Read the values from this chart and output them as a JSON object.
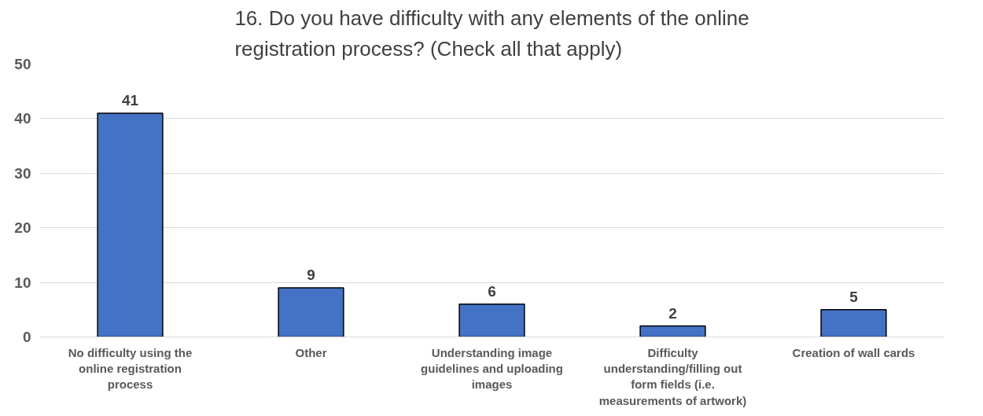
{
  "chart_data": {
    "type": "bar",
    "title": "16. Do you have difficulty with any elements of the online registration process? (Check all that apply)",
    "categories": [
      "No difficulty using the online registration process",
      "Other",
      "Understanding image guidelines and uploading images",
      "Difficulty understanding/filling out form fields (i.e. measurements of artwork)",
      "Creation of wall cards"
    ],
    "values": [
      41,
      9,
      6,
      2,
      5
    ],
    "color": "#4472c4",
    "ylim": [
      0,
      50
    ],
    "yticks": [
      0,
      10,
      20,
      30,
      40,
      50
    ],
    "grid": "y",
    "data_labels": true
  }
}
